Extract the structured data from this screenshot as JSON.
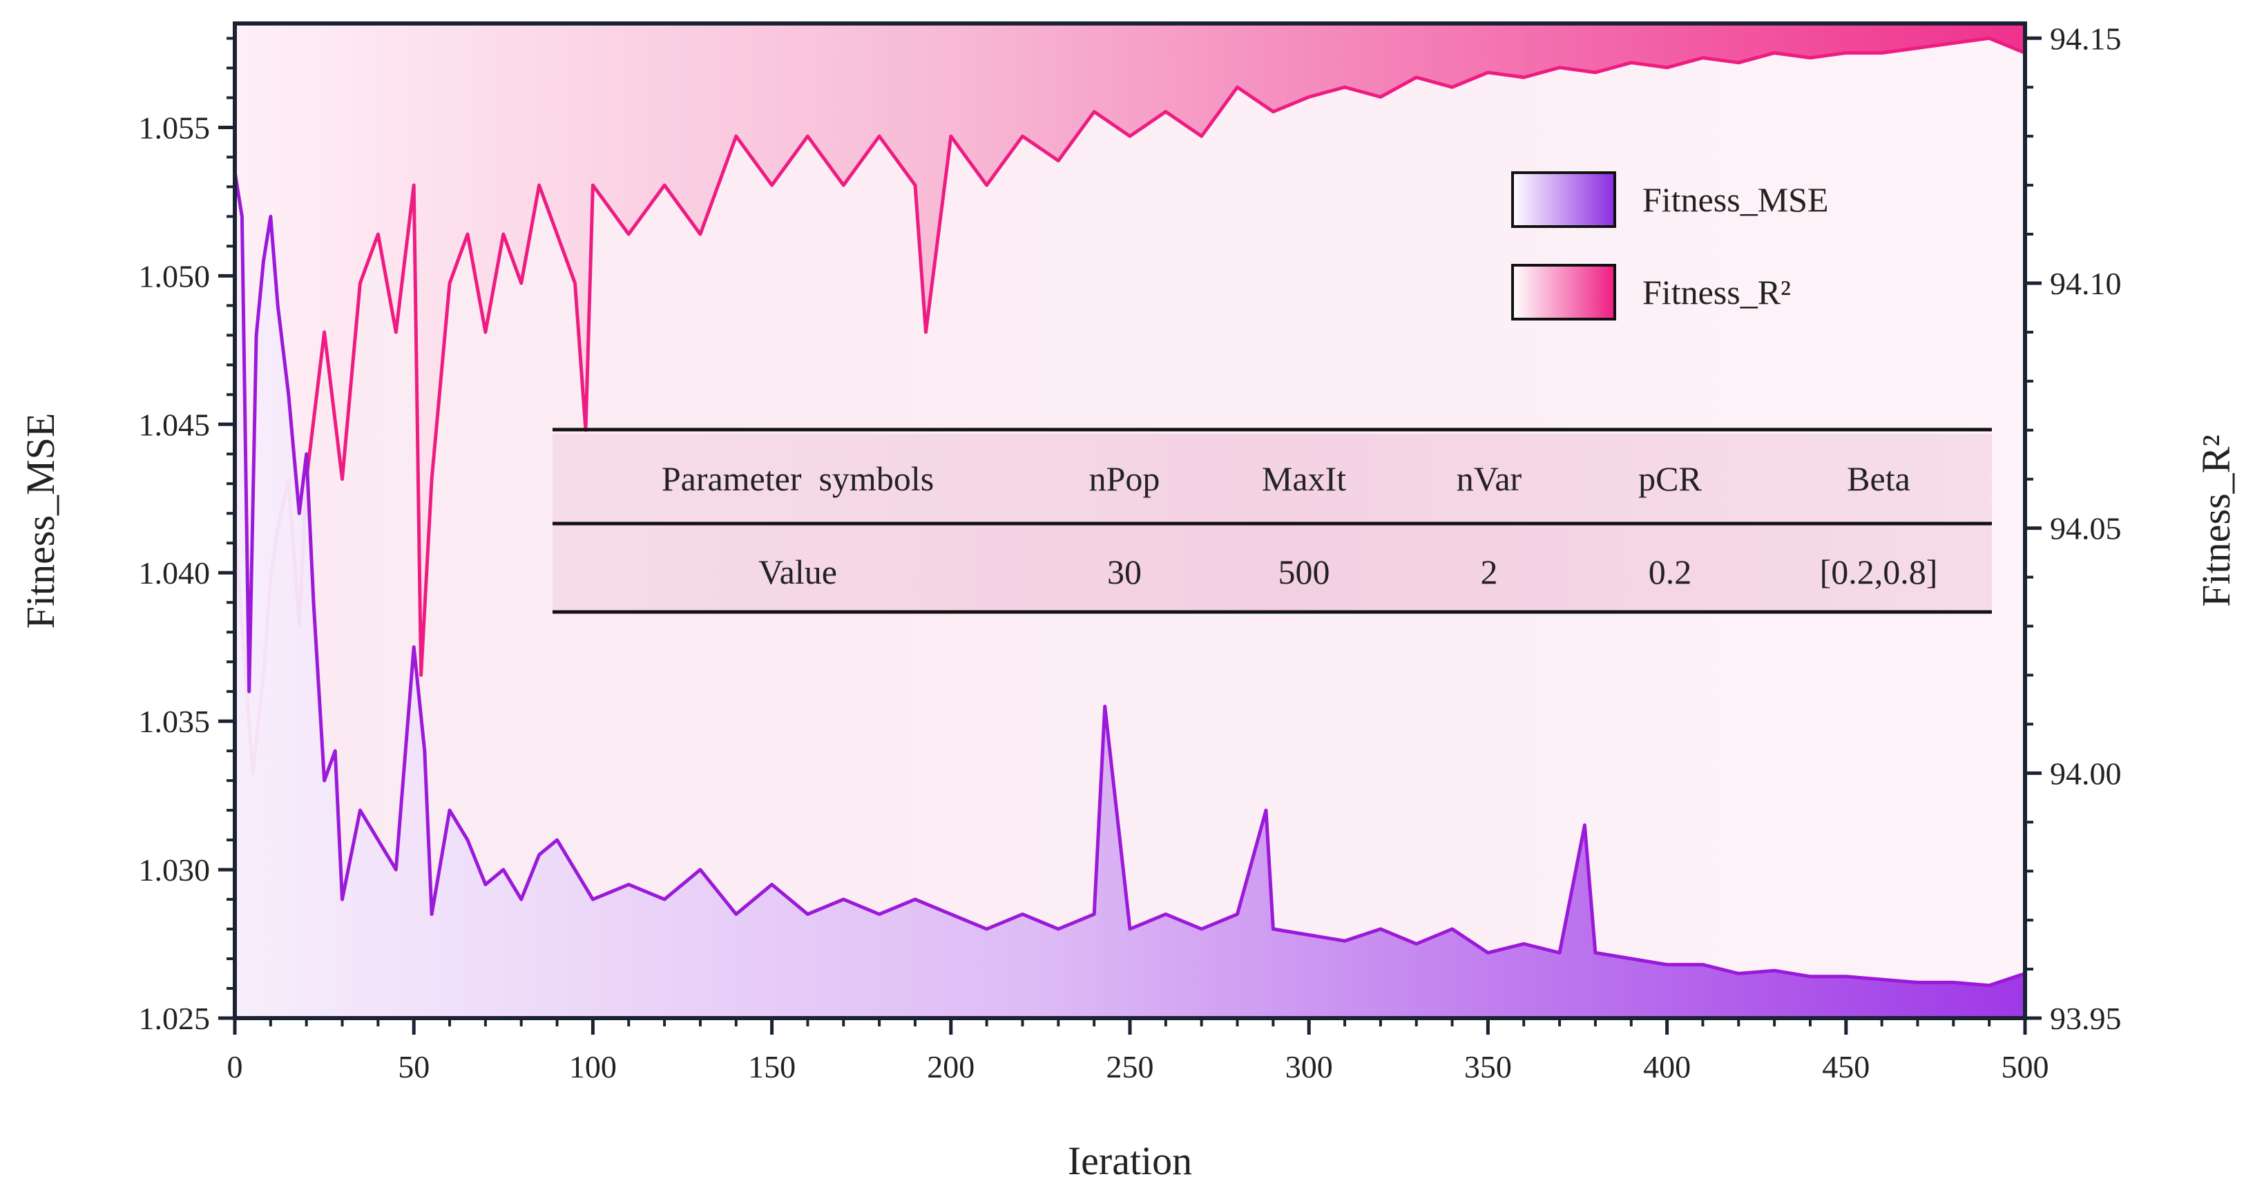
{
  "chart_data": {
    "type": "line",
    "xlabel": "Ieration",
    "ylabel_left": "Fitness_MSE",
    "ylabel_right": "Fitness_R²",
    "xlim": [
      0,
      500
    ],
    "ylim_left": [
      1.025,
      1.0585
    ],
    "ylim_right": [
      93.95,
      94.153
    ],
    "xticks": [
      "0",
      "50",
      "100",
      "150",
      "200",
      "250",
      "300",
      "350",
      "400",
      "450",
      "500"
    ],
    "yticks_left": [
      "1.025",
      "1.030",
      "1.035",
      "1.040",
      "1.045",
      "1.050",
      "1.055"
    ],
    "yticks_right": [
      "93.95",
      "94.00",
      "94.05",
      "94.10",
      "94.15"
    ],
    "legend_position": "top-right",
    "grid": false,
    "series": [
      {
        "name": "Fitness_MSE",
        "axis": "left",
        "color": "#9b19d8",
        "fill": "purple-gradient",
        "x": [
          0,
          2,
          4,
          6,
          8,
          10,
          12,
          15,
          18,
          20,
          22,
          25,
          28,
          30,
          35,
          40,
          45,
          50,
          53,
          55,
          60,
          65,
          70,
          75,
          80,
          85,
          90,
          95,
          100,
          110,
          120,
          130,
          140,
          150,
          160,
          170,
          180,
          190,
          200,
          210,
          220,
          230,
          240,
          243,
          250,
          260,
          270,
          280,
          288,
          290,
          300,
          310,
          320,
          330,
          340,
          350,
          360,
          370,
          377,
          380,
          390,
          400,
          410,
          420,
          430,
          440,
          450,
          460,
          470,
          480,
          490,
          500
        ],
        "y": [
          1.0535,
          1.052,
          1.036,
          1.048,
          1.0505,
          1.052,
          1.049,
          1.046,
          1.042,
          1.044,
          1.039,
          1.033,
          1.034,
          1.029,
          1.032,
          1.031,
          1.03,
          1.0375,
          1.034,
          1.0285,
          1.032,
          1.031,
          1.0295,
          1.03,
          1.029,
          1.0305,
          1.031,
          1.03,
          1.029,
          1.0295,
          1.029,
          1.03,
          1.0285,
          1.0295,
          1.0285,
          1.029,
          1.0285,
          1.029,
          1.0285,
          1.028,
          1.0285,
          1.028,
          1.0285,
          1.0355,
          1.028,
          1.0285,
          1.028,
          1.0285,
          1.032,
          1.028,
          1.0278,
          1.0276,
          1.028,
          1.0275,
          1.028,
          1.0272,
          1.0275,
          1.0272,
          1.0315,
          1.0272,
          1.027,
          1.0268,
          1.0268,
          1.0265,
          1.0266,
          1.0264,
          1.0264,
          1.0263,
          1.0262,
          1.0262,
          1.0261,
          1.0265
        ]
      },
      {
        "name": "Fitness_R²",
        "axis": "right",
        "color": "#ee1c82",
        "fill": "pink-gradient",
        "x": [
          0,
          2,
          5,
          8,
          10,
          12,
          15,
          18,
          20,
          25,
          30,
          35,
          40,
          45,
          50,
          52,
          55,
          60,
          65,
          70,
          75,
          80,
          85,
          90,
          95,
          98,
          100,
          110,
          120,
          130,
          140,
          150,
          160,
          170,
          180,
          190,
          193,
          200,
          210,
          220,
          230,
          240,
          250,
          260,
          270,
          280,
          290,
          300,
          310,
          320,
          330,
          340,
          350,
          360,
          370,
          380,
          390,
          400,
          410,
          420,
          430,
          440,
          450,
          460,
          470,
          480,
          490,
          500
        ],
        "y": [
          94.05,
          94.03,
          94.0,
          94.02,
          94.04,
          94.05,
          94.06,
          94.03,
          94.06,
          94.09,
          94.06,
          94.1,
          94.11,
          94.09,
          94.12,
          94.02,
          94.06,
          94.1,
          94.11,
          94.09,
          94.11,
          94.1,
          94.12,
          94.11,
          94.1,
          94.07,
          94.12,
          94.11,
          94.12,
          94.11,
          94.13,
          94.12,
          94.13,
          94.12,
          94.13,
          94.12,
          94.09,
          94.13,
          94.12,
          94.13,
          94.125,
          94.135,
          94.13,
          94.135,
          94.13,
          94.14,
          94.135,
          94.138,
          94.14,
          94.138,
          94.142,
          94.14,
          94.143,
          94.142,
          94.144,
          94.143,
          94.145,
          94.144,
          94.146,
          94.145,
          94.147,
          94.146,
          94.147,
          94.147,
          94.148,
          94.149,
          94.15,
          94.147
        ]
      }
    ]
  },
  "legend": [
    {
      "label": "Fitness_MSE",
      "swatch": "purple"
    },
    {
      "label": "Fitness_R²",
      "swatch": "pink"
    }
  ],
  "table": {
    "headers": [
      "Parameter  symbols",
      "nPop",
      "MaxIt",
      "nVar",
      "pCR",
      "Beta"
    ],
    "row": [
      "Value",
      "30",
      "500",
      "2",
      "0.2",
      "[0.2,0.8]"
    ]
  },
  "colors": {
    "mse_line": "#9b19d8",
    "r2_line": "#ee1c82",
    "frame": "#1a2233",
    "table_row_bg": "#f3d3e4"
  }
}
